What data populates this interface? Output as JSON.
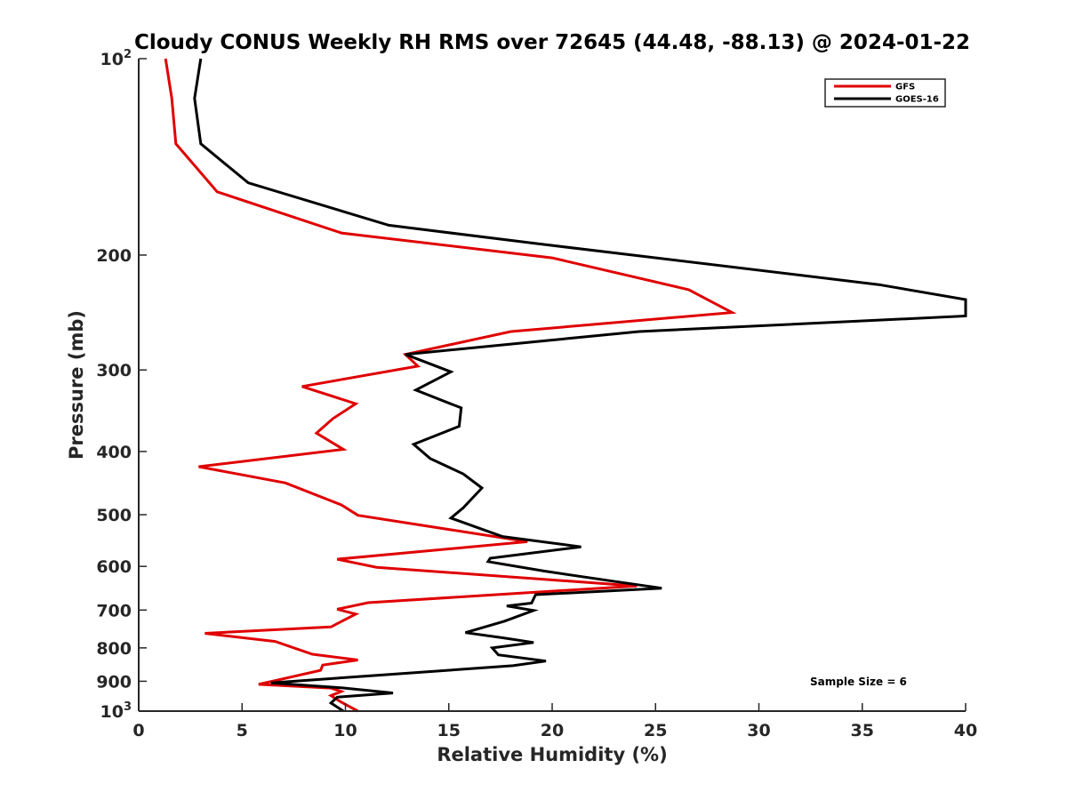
{
  "chart_data": {
    "type": "line",
    "title": "Cloudy CONUS Weekly RH RMS over 72645 (44.48, -88.13) @ 2024-01-22",
    "xlabel": "Relative Humidity (%)",
    "ylabel": "Pressure (mb)",
    "xlim": [
      0,
      40
    ],
    "ylim": [
      100,
      1000
    ],
    "y_scale": "log",
    "y_reversed": true,
    "grid": false,
    "legend_position": "top-right",
    "x_ticks": [
      {
        "value": 0,
        "label": "0"
      },
      {
        "value": 5,
        "label": "5"
      },
      {
        "value": 10,
        "label": "10"
      },
      {
        "value": 15,
        "label": "15"
      },
      {
        "value": 20,
        "label": "20"
      },
      {
        "value": 25,
        "label": "25"
      },
      {
        "value": 30,
        "label": "30"
      },
      {
        "value": 35,
        "label": "35"
      },
      {
        "value": 40,
        "label": "40"
      }
    ],
    "y_ticks": [
      {
        "value": 100,
        "base": "10",
        "exp": "2"
      },
      {
        "value": 200,
        "base": "200",
        "exp": ""
      },
      {
        "value": 300,
        "base": "300",
        "exp": ""
      },
      {
        "value": 400,
        "base": "400",
        "exp": ""
      },
      {
        "value": 500,
        "base": "500",
        "exp": ""
      },
      {
        "value": 600,
        "base": "600",
        "exp": ""
      },
      {
        "value": 700,
        "base": "700",
        "exp": ""
      },
      {
        "value": 800,
        "base": "800",
        "exp": ""
      },
      {
        "value": 900,
        "base": "900",
        "exp": ""
      },
      {
        "value": 1000,
        "base": "10",
        "exp": "3"
      }
    ],
    "series": [
      {
        "name": "GFS",
        "color": "#e00000",
        "points": [
          [
            1.3,
            100
          ],
          [
            1.6,
            115
          ],
          [
            1.8,
            135
          ],
          [
            3.8,
            160
          ],
          [
            9.8,
            185
          ],
          [
            20.0,
            202
          ],
          [
            26.6,
            226
          ],
          [
            28.7,
            245
          ],
          [
            18.0,
            262
          ],
          [
            12.9,
            284
          ],
          [
            13.5,
            296
          ],
          [
            7.9,
            318
          ],
          [
            10.5,
            338
          ],
          [
            9.4,
            356
          ],
          [
            8.6,
            375
          ],
          [
            9.9,
            397
          ],
          [
            2.9,
            422
          ],
          [
            7.1,
            447
          ],
          [
            9.8,
            483
          ],
          [
            10.6,
            501
          ],
          [
            18.8,
            550
          ],
          [
            9.6,
            585
          ],
          [
            11.5,
            602
          ],
          [
            24.1,
            643
          ],
          [
            16.6,
            665
          ],
          [
            11.1,
            682
          ],
          [
            9.6,
            698
          ],
          [
            10.5,
            710
          ],
          [
            9.3,
            743
          ],
          [
            3.2,
            760
          ],
          [
            6.6,
            782
          ],
          [
            8.4,
            818
          ],
          [
            10.6,
            835
          ],
          [
            8.9,
            850
          ],
          [
            8.8,
            866
          ],
          [
            5.8,
            910
          ],
          [
            9.3,
            922
          ],
          [
            9.8,
            933
          ],
          [
            9.3,
            947
          ],
          [
            9.8,
            969
          ],
          [
            10.6,
            1000
          ]
        ]
      },
      {
        "name": "GOES-16",
        "color": "#000000",
        "points": [
          [
            3.0,
            100
          ],
          [
            2.7,
            115
          ],
          [
            3.0,
            135
          ],
          [
            5.3,
            155
          ],
          [
            12.1,
            180
          ],
          [
            19.2,
            192
          ],
          [
            35.8,
            222
          ],
          [
            40.0,
            234
          ],
          [
            40.0,
            248
          ],
          [
            24.2,
            262
          ],
          [
            12.9,
            284
          ],
          [
            15.1,
            302
          ],
          [
            13.4,
            322
          ],
          [
            15.6,
            343
          ],
          [
            15.5,
            366
          ],
          [
            13.3,
            390
          ],
          [
            14.1,
            410
          ],
          [
            15.7,
            433
          ],
          [
            16.6,
            455
          ],
          [
            15.7,
            488
          ],
          [
            15.1,
            506
          ],
          [
            17.6,
            540
          ],
          [
            21.4,
            560
          ],
          [
            17.0,
            583
          ],
          [
            16.9,
            590
          ],
          [
            19.6,
            610
          ],
          [
            22.9,
            632
          ],
          [
            25.3,
            648
          ],
          [
            19.2,
            663
          ],
          [
            19.0,
            683
          ],
          [
            17.8,
            690
          ],
          [
            19.1,
            701
          ],
          [
            17.7,
            728
          ],
          [
            15.8,
            758
          ],
          [
            17.6,
            772
          ],
          [
            19.1,
            785
          ],
          [
            17.1,
            800
          ],
          [
            17.4,
            820
          ],
          [
            19.7,
            838
          ],
          [
            18.1,
            852
          ],
          [
            6.4,
            905
          ],
          [
            9.8,
            921
          ],
          [
            12.3,
            938
          ],
          [
            9.6,
            952
          ],
          [
            9.3,
            972
          ],
          [
            9.9,
            1000
          ]
        ]
      }
    ],
    "annotations": [
      "Sample Size = 6"
    ]
  }
}
